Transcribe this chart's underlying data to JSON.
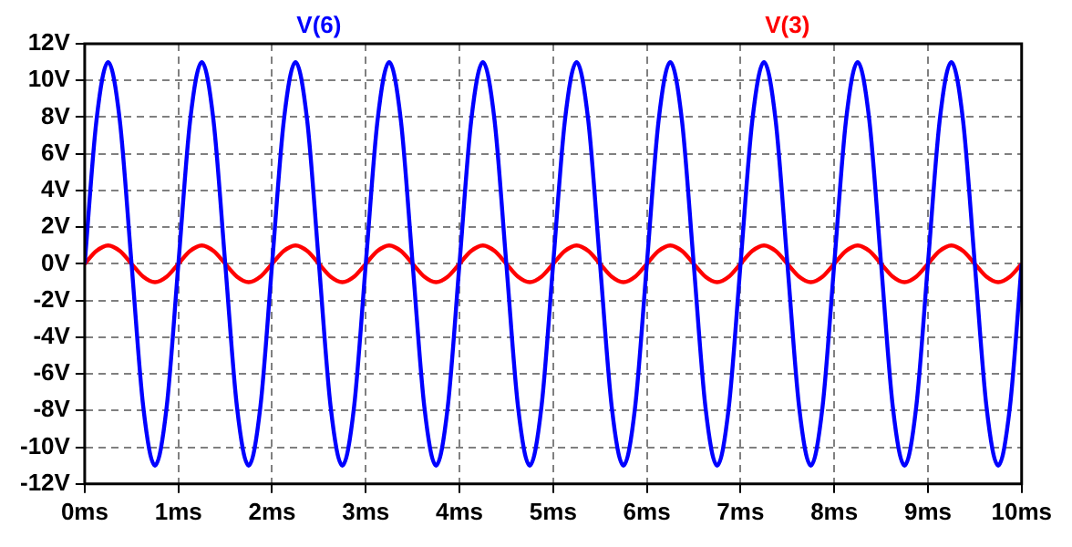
{
  "chart_data": {
    "type": "line",
    "x": [
      0,
      0.125,
      0.25,
      0.375,
      0.5,
      0.625,
      0.75,
      0.875,
      1,
      1.125,
      1.25,
      1.375,
      1.5,
      1.625,
      1.75,
      1.875,
      2,
      2.125,
      2.25,
      2.375,
      2.5,
      2.625,
      2.75,
      2.875,
      3,
      3.125,
      3.25,
      3.375,
      3.5,
      3.625,
      3.75,
      3.875,
      4,
      4.125,
      4.25,
      4.375,
      4.5,
      4.625,
      4.75,
      4.875,
      5,
      5.125,
      5.25,
      5.375,
      5.5,
      5.625,
      5.75,
      5.875,
      6,
      6.125,
      6.25,
      6.375,
      6.5,
      6.625,
      6.75,
      6.875,
      7,
      7.125,
      7.25,
      7.375,
      7.5,
      7.625,
      7.75,
      7.875,
      8,
      8.125,
      8.25,
      8.375,
      8.5,
      8.625,
      8.75,
      8.875,
      9,
      9.125,
      9.25,
      9.375,
      9.5,
      9.625,
      9.75,
      9.875,
      10
    ],
    "series": [
      {
        "name": "V(6)",
        "color": "#0000ff",
        "values": [
          0,
          7.8,
          11,
          7.8,
          0,
          -7.8,
          -11,
          -7.8,
          0,
          7.8,
          11,
          7.8,
          0,
          -7.8,
          -11,
          -7.8,
          0,
          7.8,
          11,
          7.8,
          0,
          -7.8,
          -11,
          -7.8,
          0,
          7.8,
          11,
          7.8,
          0,
          -7.8,
          -11,
          -7.8,
          0,
          7.8,
          11,
          7.8,
          0,
          -7.8,
          -11,
          -7.8,
          0,
          7.8,
          11,
          7.8,
          0,
          -7.8,
          -11,
          -7.8,
          0,
          7.8,
          11,
          7.8,
          0,
          -7.8,
          -11,
          -7.8,
          0,
          7.8,
          11,
          7.8,
          0,
          -7.8,
          -11,
          -7.8,
          0,
          7.8,
          11,
          7.8,
          0,
          -7.8,
          -11,
          -7.8,
          0,
          7.8,
          11,
          7.8,
          0,
          -7.8,
          -11,
          -7.8,
          0
        ]
      },
      {
        "name": "V(3)",
        "color": "#ff0000",
        "values": [
          0,
          0.7,
          1,
          0.7,
          0,
          -0.7,
          -1,
          -0.7,
          0,
          0.7,
          1,
          0.7,
          0,
          -0.7,
          -1,
          -0.7,
          0,
          0.7,
          1,
          0.7,
          0,
          -0.7,
          -1,
          -0.7,
          0,
          0.7,
          1,
          0.7,
          0,
          -0.7,
          -1,
          -0.7,
          0,
          0.7,
          1,
          0.7,
          0,
          -0.7,
          -1,
          -0.7,
          0,
          0.7,
          1,
          0.7,
          0,
          -0.7,
          -1,
          -0.7,
          0,
          0.7,
          1,
          0.7,
          0,
          -0.7,
          -1,
          -0.7,
          0,
          0.7,
          1,
          0.7,
          0,
          -0.7,
          -1,
          -0.7,
          0,
          0.7,
          1,
          0.7,
          0,
          -0.7,
          -1,
          -0.7,
          0,
          0.7,
          1,
          0.7,
          0,
          -0.7,
          -1,
          -0.7,
          0
        ]
      }
    ],
    "xlim": [
      0,
      10
    ],
    "xticks": [
      {
        "value": 0,
        "label": "0ms"
      },
      {
        "value": 1,
        "label": "1ms"
      },
      {
        "value": 2,
        "label": "2ms"
      },
      {
        "value": 3,
        "label": "3ms"
      },
      {
        "value": 4,
        "label": "4ms"
      },
      {
        "value": 5,
        "label": "5ms"
      },
      {
        "value": 6,
        "label": "6ms"
      },
      {
        "value": 7,
        "label": "7ms"
      },
      {
        "value": 8,
        "label": "8ms"
      },
      {
        "value": 9,
        "label": "9ms"
      },
      {
        "value": 10,
        "label": "10ms"
      }
    ],
    "ylim": [
      -12,
      12
    ],
    "yticks": [
      {
        "value": -12,
        "label": "-12V"
      },
      {
        "value": -10,
        "label": "-10V"
      },
      {
        "value": -8,
        "label": "-8V"
      },
      {
        "value": -6,
        "label": "-6V"
      },
      {
        "value": -4,
        "label": "-4V"
      },
      {
        "value": -2,
        "label": "-2V"
      },
      {
        "value": 0,
        "label": "0V"
      },
      {
        "value": 2,
        "label": "2V"
      },
      {
        "value": 4,
        "label": "4V"
      },
      {
        "value": 6,
        "label": "6V"
      },
      {
        "value": 8,
        "label": "8V"
      },
      {
        "value": 10,
        "label": "10V"
      },
      {
        "value": 12,
        "label": "12V"
      }
    ],
    "grid": true,
    "legend": "top",
    "marker": "none"
  }
}
